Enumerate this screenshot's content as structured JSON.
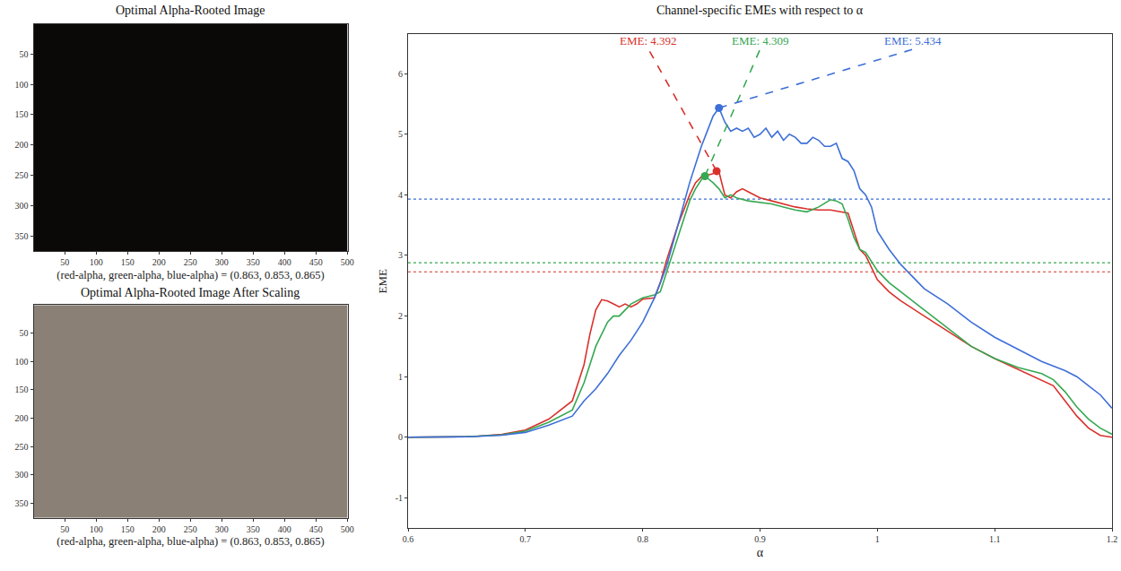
{
  "chart_data": [
    {
      "type": "image",
      "title": "Optimal Alpha-Rooted Image",
      "x_label": "(red-alpha, green-alpha, blue-alpha) = (0.863, 0.853, 0.865)",
      "color": "#0a0908",
      "xlim": [
        0.5,
        500.5
      ],
      "ylim": [
        375.5,
        0.5
      ],
      "xticks": [
        50,
        100,
        150,
        200,
        250,
        300,
        350,
        400,
        450,
        500
      ],
      "yticks": [
        50,
        100,
        150,
        200,
        250,
        300,
        350
      ]
    },
    {
      "type": "image",
      "title": "Optimal Alpha-Rooted Image After Scaling",
      "x_label": "(red-alpha, green-alpha, blue-alpha) = (0.863, 0.853, 0.865)",
      "color": "#8a8076",
      "xlim": [
        0.5,
        500.5
      ],
      "ylim": [
        375.5,
        0.5
      ],
      "xticks": [
        50,
        100,
        150,
        200,
        250,
        300,
        350,
        400,
        450,
        500
      ],
      "yticks": [
        50,
        100,
        150,
        200,
        250,
        300,
        350
      ]
    },
    {
      "type": "line",
      "title": "Channel-specific EMEs with respect to α",
      "x_label": "α",
      "y_label": "EME",
      "xlim": [
        0.6,
        1.2
      ],
      "xticks": [
        0.6,
        0.7,
        0.8,
        0.9,
        1,
        1.1,
        1.2
      ],
      "ylim": [
        -1.5,
        6.65
      ],
      "yticks": [
        -1,
        0,
        1,
        2,
        3,
        4,
        5,
        6
      ],
      "grid": false,
      "series": [
        {
          "color": "#d9312b",
          "x": [
            0.6,
            0.62,
            0.64,
            0.65,
            0.66,
            0.68,
            0.7,
            0.72,
            0.74,
            0.75,
            0.755,
            0.76,
            0.765,
            0.77,
            0.775,
            0.78,
            0.785,
            0.79,
            0.795,
            0.8,
            0.81,
            0.815,
            0.82,
            0.83,
            0.84,
            0.845,
            0.85,
            0.855,
            0.86,
            0.863,
            0.865,
            0.87,
            0.875,
            0.88,
            0.885,
            0.89,
            0.9,
            0.91,
            0.92,
            0.93,
            0.94,
            0.95,
            0.96,
            0.97,
            0.975,
            0.98,
            0.985,
            0.99,
            1.0,
            1.01,
            1.02,
            1.04,
            1.06,
            1.08,
            1.1,
            1.12,
            1.14,
            1.15,
            1.16,
            1.17,
            1.18,
            1.19,
            1.2
          ],
          "values": [
            0,
            0,
            0.005,
            0.01,
            0.02,
            0.05,
            0.12,
            0.3,
            0.6,
            1.2,
            1.7,
            2.1,
            2.27,
            2.25,
            2.2,
            2.15,
            2.2,
            2.15,
            2.2,
            2.28,
            2.3,
            2.55,
            2.9,
            3.5,
            4.0,
            4.2,
            4.3,
            4.32,
            4.35,
            4.392,
            4.38,
            4.0,
            3.95,
            4.05,
            4.1,
            4.05,
            3.95,
            3.9,
            3.85,
            3.8,
            3.77,
            3.75,
            3.75,
            3.72,
            3.7,
            3.4,
            3.1,
            3.0,
            2.6,
            2.4,
            2.25,
            2.0,
            1.75,
            1.5,
            1.3,
            1.12,
            0.95,
            0.85,
            0.6,
            0.35,
            0.15,
            0.03,
            0
          ]
        },
        {
          "color": "#36a852",
          "x": [
            0.6,
            0.62,
            0.64,
            0.65,
            0.66,
            0.68,
            0.7,
            0.72,
            0.74,
            0.75,
            0.76,
            0.77,
            0.775,
            0.78,
            0.785,
            0.79,
            0.8,
            0.81,
            0.815,
            0.82,
            0.83,
            0.84,
            0.845,
            0.85,
            0.853,
            0.86,
            0.865,
            0.87,
            0.875,
            0.88,
            0.89,
            0.9,
            0.91,
            0.92,
            0.93,
            0.94,
            0.95,
            0.96,
            0.965,
            0.97,
            0.975,
            0.98,
            0.985,
            0.99,
            1.0,
            1.01,
            1.02,
            1.04,
            1.06,
            1.08,
            1.1,
            1.12,
            1.14,
            1.15,
            1.16,
            1.17,
            1.18,
            1.19,
            1.2
          ],
          "values": [
            0,
            0,
            0.005,
            0.01,
            0.02,
            0.04,
            0.1,
            0.25,
            0.45,
            0.9,
            1.5,
            1.9,
            2.0,
            2.0,
            2.1,
            2.2,
            2.3,
            2.35,
            2.4,
            2.7,
            3.3,
            3.9,
            4.1,
            4.25,
            4.309,
            4.2,
            4.1,
            3.95,
            4.0,
            3.95,
            3.9,
            3.88,
            3.85,
            3.8,
            3.75,
            3.72,
            3.8,
            3.92,
            3.9,
            3.85,
            3.6,
            3.3,
            3.1,
            3.05,
            2.75,
            2.55,
            2.4,
            2.1,
            1.8,
            1.5,
            1.3,
            1.15,
            1.05,
            0.95,
            0.75,
            0.5,
            0.3,
            0.15,
            0.05
          ]
        },
        {
          "color": "#3d6fd8",
          "x": [
            0.6,
            0.62,
            0.64,
            0.65,
            0.66,
            0.68,
            0.7,
            0.72,
            0.74,
            0.75,
            0.76,
            0.77,
            0.78,
            0.79,
            0.8,
            0.81,
            0.82,
            0.83,
            0.84,
            0.845,
            0.85,
            0.855,
            0.86,
            0.865,
            0.87,
            0.875,
            0.88,
            0.885,
            0.89,
            0.895,
            0.9,
            0.905,
            0.91,
            0.915,
            0.92,
            0.925,
            0.93,
            0.935,
            0.94,
            0.945,
            0.95,
            0.955,
            0.96,
            0.965,
            0.97,
            0.975,
            0.98,
            0.985,
            0.99,
            0.995,
            1.0,
            1.01,
            1.02,
            1.04,
            1.06,
            1.08,
            1.1,
            1.12,
            1.14,
            1.16,
            1.17,
            1.18,
            1.19,
            1.2
          ],
          "values": [
            0,
            0,
            0.004,
            0.008,
            0.015,
            0.035,
            0.08,
            0.2,
            0.35,
            0.6,
            0.8,
            1.05,
            1.35,
            1.6,
            1.9,
            2.3,
            2.8,
            3.5,
            4.2,
            4.5,
            4.8,
            5.05,
            5.3,
            5.434,
            5.2,
            5.05,
            5.1,
            5.05,
            5.1,
            4.95,
            5.0,
            5.1,
            4.95,
            5.05,
            4.9,
            5.0,
            4.95,
            4.85,
            4.85,
            4.95,
            4.9,
            4.8,
            4.8,
            4.85,
            4.6,
            4.55,
            4.4,
            4.1,
            4.0,
            3.8,
            3.4,
            3.1,
            2.85,
            2.45,
            2.2,
            1.9,
            1.65,
            1.45,
            1.25,
            1.1,
            1.0,
            0.85,
            0.7,
            0.48
          ]
        }
      ],
      "reference_lines": [
        {
          "value": 3.93,
          "color": "#3d6fd8",
          "line_style": "dotted"
        },
        {
          "value": 2.88,
          "color": "#36a852",
          "line_style": "dotted"
        },
        {
          "value": 2.73,
          "color": "#d9312b",
          "line_style": "dotted"
        }
      ],
      "annotations": [
        {
          "text": "EME: 4.392",
          "x": 0.863,
          "y": 4.392,
          "color": "#d9312b",
          "marker": "circle",
          "line_style": "dashed"
        },
        {
          "text": "EME: 4.309",
          "x": 0.853,
          "y": 4.309,
          "color": "#36a852",
          "marker": "circle",
          "line_style": "dashed"
        },
        {
          "text": "EME: 5.434",
          "x": 0.865,
          "y": 5.434,
          "color": "#3d6fd8",
          "marker": "circle",
          "line_style": "dashed"
        }
      ]
    }
  ]
}
